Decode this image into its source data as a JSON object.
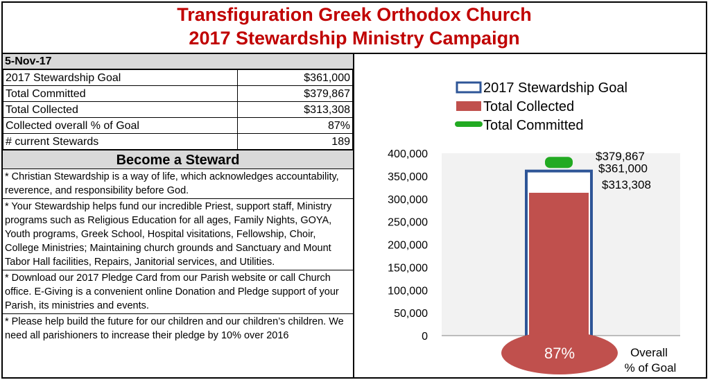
{
  "header": {
    "title_line1": "Transfiguration Greek Orthodox Church",
    "title_line2": "2017 Stewardship Ministry Campaign"
  },
  "summary": {
    "date": "5-Nov-17",
    "rows": [
      {
        "label": "2017 Stewardship Goal",
        "value": "$361,000"
      },
      {
        "label": "Total Committed",
        "value": "$379,867"
      },
      {
        "label": "Total Collected",
        "value": "$313,308"
      },
      {
        "label": "Collected overall % of Goal",
        "value": "87%"
      },
      {
        "label": "# current Stewards",
        "value": "189"
      }
    ]
  },
  "steward": {
    "heading": "Become a Steward",
    "paragraphs": [
      "* Christian Stewardship is a way of life, which acknowledges accountability, reverence, and responsibility before God.",
      "* Your Stewardship helps fund our incredible Priest, support staff, Ministry programs such as Religious Education for all ages, Family Nights, GOYA, Youth programs, Greek School, Hospital visitations, Fellowship, Choir, College Ministries; Maintaining church grounds and Sanctuary and Mount Tabor Hall facilities, Repairs, Janitorial services, and Utilities.",
      "* Download our 2017 Pledge Card from our Parish website or call Church office.  E-Giving is a convenient online Donation and Pledge support of your Parish, its ministries and events.",
      "* Please help build the future for our children and our children’s children. We need all parishioners to increase their pledge by 10% over 2016"
    ]
  },
  "chart_data": {
    "type": "bar",
    "legend": [
      {
        "name": "2017 Stewardship Goal",
        "style": "outline",
        "color": "#2e5597"
      },
      {
        "name": "Total Collected",
        "style": "fill",
        "color": "#c0504d"
      },
      {
        "name": "Total Committed",
        "style": "marker",
        "color": "#22aa22"
      }
    ],
    "series": [
      {
        "name": "2017 Stewardship Goal",
        "value": 361000,
        "label": "$361,000"
      },
      {
        "name": "Total Collected",
        "value": 313308,
        "label": "$313,308"
      },
      {
        "name": "Total Committed",
        "value": 379867,
        "label": "$379,867"
      }
    ],
    "ylim": [
      0,
      400000
    ],
    "yticks": [
      0,
      50000,
      100000,
      150000,
      200000,
      250000,
      300000,
      350000,
      400000
    ],
    "ytick_labels": [
      "0",
      "50,000",
      "100,000",
      "150,000",
      "200,000",
      "250,000",
      "300,000",
      "350,000",
      "400,000"
    ],
    "percent_label": "87%",
    "percent_caption_line1": "Overall",
    "percent_caption_line2": "% of Goal"
  }
}
